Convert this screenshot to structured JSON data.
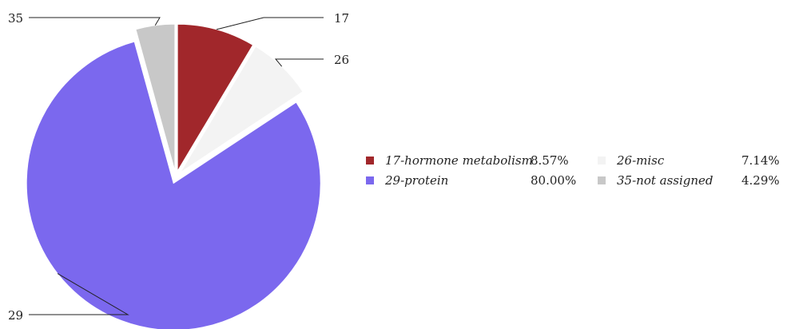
{
  "chart_data": {
    "type": "pie",
    "slices": [
      {
        "name": "17-hormone metabolism",
        "callout": "17",
        "value": 8.57,
        "percent_label": "8.57%",
        "color": "#a1272b"
      },
      {
        "name": "26-misc",
        "callout": "26",
        "value": 7.14,
        "percent_label": "7.14%",
        "color": "#f3f3f3"
      },
      {
        "name": "29-protein",
        "callout": "29",
        "value": 80.0,
        "percent_label": "80.00%",
        "color": "#7b68ee"
      },
      {
        "name": "35-not assigned",
        "callout": "35",
        "value": 4.29,
        "percent_label": "4.29%",
        "color": "#c8c8c8"
      }
    ],
    "legend_order": [
      0,
      1,
      2,
      3
    ],
    "legend_placement": "right",
    "exploded": true
  }
}
